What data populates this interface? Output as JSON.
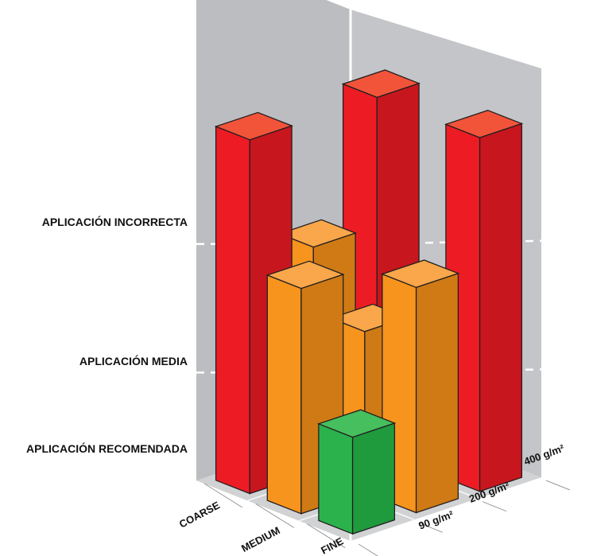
{
  "chart_data": {
    "type": "bar",
    "title": "",
    "categories": [
      "COARSE",
      "MEDIUM",
      "FINE"
    ],
    "depth_categories": [
      "90 g/m²",
      "200 g/m²",
      "400 g/m²"
    ],
    "levels": [
      "APLICACIÓN RECOMENDADA",
      "APLICACIÓN MEDIA",
      "APLICACIÓN INCORRECTA"
    ],
    "series": [
      {
        "name": "90 g/m²",
        "values": [
          3,
          2,
          1
        ]
      },
      {
        "name": "200 g/m²",
        "values": [
          2,
          1.5,
          2
        ]
      },
      {
        "name": "400 g/m²",
        "values": [
          3,
          1,
          3
        ]
      }
    ],
    "value_scale": "levels 1 = recomendada, 2 = media, 3 = incorrecta",
    "colors": {
      "recomendada": "#2bb24c",
      "media": "#f7941d",
      "incorrecta": "#ed1c24",
      "panel": "#bcbdc0",
      "floor": "#d1d2d4"
    }
  }
}
